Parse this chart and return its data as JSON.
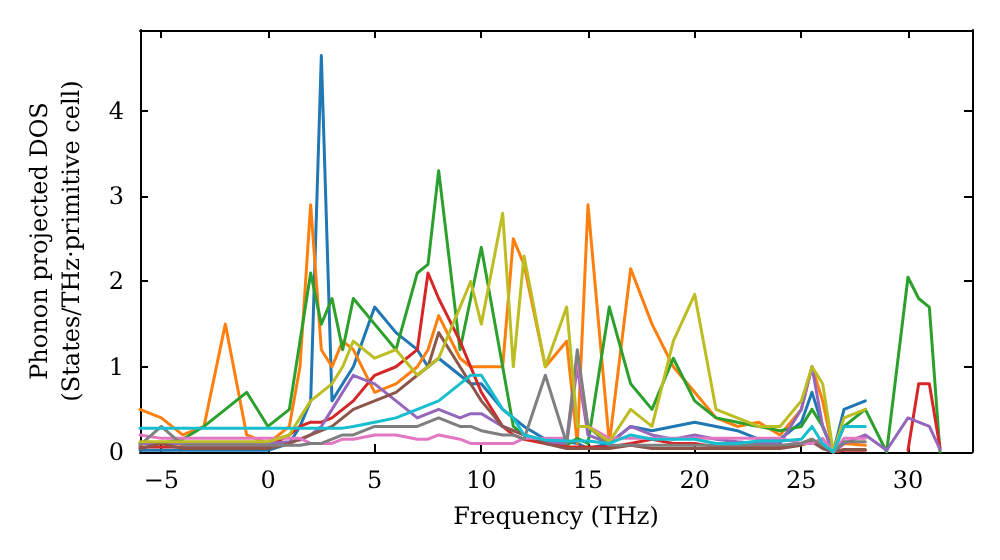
{
  "chart_data": {
    "type": "line",
    "xlabel": "Frequency (THz)",
    "ylabel": "Phonon projected DOS\n(States/THz·primitive cell)",
    "xlim": [
      -6,
      33
    ],
    "xticks": [
      -5,
      0,
      5,
      10,
      15,
      20,
      25,
      30
    ],
    "ylim": [
      0,
      4.95
    ],
    "yticks": [
      0,
      1,
      2,
      3,
      4
    ],
    "grid": false,
    "x": [
      -6,
      -5,
      -4,
      -3,
      -2,
      -1,
      0,
      1,
      1.5,
      2,
      2.5,
      3,
      3.5,
      4,
      5,
      6,
      7,
      7.5,
      8,
      9,
      9.5,
      10,
      11,
      11.5,
      12,
      13,
      14,
      14.5,
      15,
      16,
      17,
      18,
      19,
      20,
      21,
      22,
      23,
      24,
      25,
      25.5,
      26,
      26.5,
      27,
      28,
      29,
      30,
      30.5,
      31,
      31.5
    ],
    "series": [
      {
        "color": "#1f77b4",
        "values": [
          0.02,
          0.02,
          0.02,
          0.02,
          0.02,
          0.02,
          0.02,
          0.1,
          0.3,
          0.6,
          4.65,
          0.6,
          0.8,
          1.0,
          1.7,
          1.4,
          1.2,
          1.0,
          1.1,
          0.9,
          0.8,
          0.8,
          0.5,
          0.4,
          0.3,
          0.15,
          0.12,
          0.1,
          0.04,
          0.1,
          0.3,
          0.25,
          0.3,
          0.35,
          0.3,
          0.25,
          0.15,
          0.15,
          0.35,
          0.7,
          0.3,
          0,
          0.5,
          0.6,
          null,
          null,
          null,
          null,
          null
        ]
      },
      {
        "color": "#ff7f0e",
        "values": [
          0.5,
          0.4,
          0.2,
          0.3,
          1.5,
          0.2,
          0.1,
          0.3,
          1.0,
          2.9,
          1.2,
          1.0,
          1.3,
          1.2,
          0.7,
          0.8,
          1.0,
          1.2,
          1.6,
          1.1,
          1.0,
          1.0,
          1.0,
          2.5,
          2.2,
          1.0,
          1.3,
          0.1,
          2.9,
          0.1,
          2.15,
          1.5,
          1.0,
          0.7,
          0.4,
          0.3,
          0.35,
          0.2,
          0.5,
          1.0,
          0.6,
          0,
          0.1,
          0.08,
          null,
          null,
          null,
          null,
          null
        ]
      },
      {
        "color": "#2ca02c",
        "values": [
          0.1,
          0.1,
          0.15,
          0.3,
          0.5,
          0.7,
          0.3,
          0.5,
          1.3,
          2.1,
          1.5,
          1.8,
          1.2,
          1.8,
          1.5,
          1.2,
          2.1,
          2.2,
          3.3,
          1.2,
          1.8,
          2.4,
          1.0,
          0.3,
          0.2,
          0.12,
          0.08,
          0.16,
          0.1,
          1.7,
          0.8,
          0.5,
          1.1,
          0.6,
          0.4,
          0.35,
          0.3,
          0.25,
          0.3,
          0.5,
          0.3,
          0,
          0.3,
          0.5,
          0,
          2.05,
          1.8,
          1.7,
          0
        ]
      },
      {
        "color": "#d62728",
        "values": [
          0.06,
          0.06,
          0.06,
          0.06,
          0.06,
          0.06,
          0.06,
          0.2,
          0.3,
          0.35,
          0.35,
          0.4,
          0.5,
          0.6,
          0.9,
          1.0,
          1.2,
          2.1,
          1.8,
          1.3,
          1.0,
          0.7,
          0.3,
          0.2,
          0.15,
          0.1,
          0.06,
          0.06,
          0.06,
          0.06,
          0.1,
          0.15,
          0.1,
          0.1,
          0.06,
          0.06,
          0.06,
          0.06,
          0.1,
          0.15,
          0.06,
          0,
          0.02,
          0.02,
          null,
          0.02,
          0.8,
          0.8,
          0.05
        ]
      },
      {
        "color": "#9467bd",
        "values": [
          0.1,
          0.1,
          0.1,
          0.1,
          0.1,
          0.1,
          0.1,
          0.12,
          0.14,
          0.2,
          0.3,
          0.5,
          0.7,
          0.9,
          0.8,
          0.6,
          0.4,
          0.45,
          0.5,
          0.4,
          0.45,
          0.45,
          0.3,
          0.25,
          0.2,
          0.12,
          0.1,
          1.0,
          0.2,
          0.1,
          0.3,
          0.2,
          0.15,
          0.2,
          0.15,
          0.12,
          0.1,
          0.1,
          0.5,
          1.0,
          0.3,
          0,
          0.1,
          0.2,
          0.02,
          0.4,
          0.35,
          0.3,
          0.03
        ]
      },
      {
        "color": "#8c564b",
        "values": [
          0.04,
          0.1,
          0.04,
          0.04,
          0.04,
          0.04,
          0.04,
          0.1,
          0.15,
          0.2,
          0.25,
          0.3,
          0.4,
          0.5,
          0.6,
          0.7,
          0.9,
          1.0,
          1.4,
          1.0,
          0.8,
          0.6,
          0.3,
          0.25,
          0.2,
          0.1,
          0.04,
          0.04,
          0.04,
          0.04,
          0.08,
          0.04,
          0.04,
          0.04,
          0.04,
          0.04,
          0.04,
          0.04,
          0.08,
          0.12,
          0.04,
          0,
          0.03,
          0.03,
          null,
          null,
          null,
          null,
          null
        ]
      },
      {
        "color": "#e377c2",
        "values": [
          0.2,
          0.16,
          0.16,
          0.16,
          0.16,
          0.16,
          0.16,
          0.16,
          0.16,
          0.1,
          0.1,
          0.1,
          0.15,
          0.15,
          0.2,
          0.2,
          0.15,
          0.15,
          0.2,
          0.15,
          0.1,
          0.1,
          0.1,
          0.1,
          0.16,
          0.16,
          0.16,
          1.1,
          0.3,
          0.16,
          0.16,
          0.16,
          0.16,
          0.16,
          0.16,
          0.16,
          0.16,
          0.16,
          0.1,
          0.1,
          0.16,
          0,
          0.16,
          0.16,
          null,
          null,
          null,
          null,
          null
        ]
      },
      {
        "color": "#7f7f7f",
        "values": [
          0.08,
          0.3,
          0.08,
          0.08,
          0.08,
          0.08,
          0.08,
          0.08,
          0.08,
          0.1,
          0.1,
          0.15,
          0.2,
          0.2,
          0.3,
          0.3,
          0.3,
          0.35,
          0.4,
          0.3,
          0.3,
          0.25,
          0.2,
          0.2,
          0.15,
          0.9,
          0.1,
          1.2,
          0.3,
          0.08,
          0.08,
          0.08,
          0.08,
          0.08,
          0.08,
          0.08,
          0.08,
          0.08,
          0.1,
          0.15,
          0.08,
          0,
          0.12,
          0.12,
          null,
          null,
          null,
          null,
          null
        ]
      },
      {
        "color": "#bcbd22",
        "values": [
          0.12,
          0.12,
          0.12,
          0.12,
          0.12,
          0.12,
          0.12,
          0.2,
          0.4,
          0.6,
          0.7,
          0.8,
          1.0,
          1.3,
          1.1,
          1.2,
          0.9,
          1.0,
          1.1,
          1.7,
          2.0,
          1.5,
          2.8,
          1.0,
          2.3,
          1.0,
          1.7,
          0.3,
          0.3,
          0.12,
          0.5,
          0.3,
          1.3,
          1.85,
          0.5,
          0.4,
          0.3,
          0.3,
          0.6,
          1.0,
          0.8,
          0,
          0.4,
          0.5,
          null,
          null,
          null,
          null,
          null
        ]
      },
      {
        "color": "#17becf",
        "values": [
          0.28,
          0.28,
          0.28,
          0.28,
          0.28,
          0.28,
          0.28,
          0.28,
          0.28,
          0.28,
          0.28,
          0.28,
          0.28,
          0.3,
          0.35,
          0.4,
          0.5,
          0.55,
          0.6,
          0.8,
          0.9,
          0.9,
          0.5,
          0.4,
          0.2,
          0.14,
          0.13,
          0.13,
          0.13,
          0.1,
          0.2,
          0.15,
          0.15,
          0.15,
          0.1,
          0.1,
          0.13,
          0.13,
          0.15,
          0.3,
          0.1,
          0,
          0.3,
          0.3,
          null,
          null,
          null,
          null,
          null
        ]
      }
    ]
  }
}
